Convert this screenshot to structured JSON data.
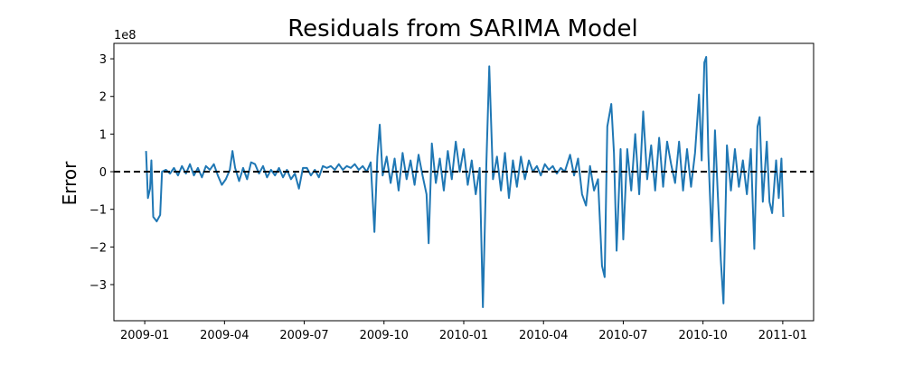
{
  "chart_data": {
    "type": "line",
    "title": "Residuals from SARIMA Model",
    "ylabel": "Error",
    "y_offset_label": "1e8",
    "color": "#1f77b4",
    "hline": 0,
    "xlim": [
      -1.16,
      25.16
    ],
    "xticks": [
      {
        "value": 0,
        "label": "2009-01"
      },
      {
        "value": 3,
        "label": "2009-04"
      },
      {
        "value": 6,
        "label": "2009-07"
      },
      {
        "value": 9,
        "label": "2009-10"
      },
      {
        "value": 12,
        "label": "2010-01"
      },
      {
        "value": 15,
        "label": "2010-04"
      },
      {
        "value": 18,
        "label": "2010-07"
      },
      {
        "value": 21,
        "label": "2010-10"
      },
      {
        "value": 24,
        "label": "2011-01"
      }
    ],
    "ylim": [
      -3.96,
      3.41
    ],
    "yticks": [
      {
        "value": -3,
        "label": "−3"
      },
      {
        "value": -2,
        "label": "−2"
      },
      {
        "value": -1,
        "label": "−1"
      },
      0,
      1,
      2,
      3
    ],
    "x": [
      0.05,
      0.12,
      0.2,
      0.25,
      0.32,
      0.45,
      0.58,
      0.65,
      0.8,
      0.95,
      1.1,
      1.25,
      1.4,
      1.55,
      1.7,
      1.85,
      2.0,
      2.15,
      2.3,
      2.45,
      2.6,
      2.75,
      2.9,
      3.05,
      3.2,
      3.3,
      3.4,
      3.55,
      3.7,
      3.85,
      4.0,
      4.15,
      4.3,
      4.45,
      4.6,
      4.75,
      4.9,
      5.05,
      5.2,
      5.35,
      5.5,
      5.65,
      5.8,
      5.95,
      6.1,
      6.25,
      6.4,
      6.55,
      6.7,
      6.85,
      7.0,
      7.15,
      7.3,
      7.45,
      7.6,
      7.75,
      7.9,
      8.05,
      8.2,
      8.35,
      8.5,
      8.64,
      8.75,
      8.84,
      8.95,
      9.1,
      9.25,
      9.4,
      9.55,
      9.7,
      9.85,
      10.0,
      10.15,
      10.3,
      10.45,
      10.6,
      10.68,
      10.8,
      10.95,
      11.1,
      11.25,
      11.4,
      11.55,
      11.7,
      11.85,
      12.0,
      12.15,
      12.3,
      12.45,
      12.6,
      12.72,
      12.85,
      12.96,
      13.1,
      13.25,
      13.4,
      13.55,
      13.7,
      13.85,
      14.0,
      14.15,
      14.3,
      14.45,
      14.6,
      14.75,
      14.9,
      15.05,
      15.2,
      15.35,
      15.5,
      15.65,
      15.8,
      16.0,
      16.15,
      16.3,
      16.45,
      16.6,
      16.75,
      16.9,
      17.05,
      17.2,
      17.3,
      17.4,
      17.55,
      17.65,
      17.75,
      17.9,
      18.0,
      18.15,
      18.3,
      18.45,
      18.6,
      18.75,
      18.9,
      19.05,
      19.2,
      19.35,
      19.5,
      19.65,
      19.8,
      19.95,
      20.1,
      20.25,
      20.4,
      20.55,
      20.7,
      20.85,
      20.95,
      21.05,
      21.12,
      21.2,
      21.33,
      21.45,
      21.55,
      21.67,
      21.77,
      21.9,
      22.05,
      22.2,
      22.35,
      22.5,
      22.65,
      22.8,
      22.93,
      23.05,
      23.13,
      23.25,
      23.4,
      23.5,
      23.6,
      23.75,
      23.85,
      23.95,
      24.02
    ],
    "values": [
      0.55,
      -0.7,
      -0.45,
      0.3,
      -1.2,
      -1.32,
      -1.15,
      0.0,
      0.05,
      -0.05,
      0.1,
      -0.1,
      0.15,
      -0.05,
      0.2,
      -0.1,
      0.1,
      -0.15,
      0.15,
      0.05,
      0.2,
      -0.1,
      -0.35,
      -0.2,
      0.05,
      0.55,
      0.1,
      -0.25,
      0.1,
      -0.2,
      0.25,
      0.2,
      -0.05,
      0.15,
      -0.15,
      0.05,
      -0.1,
      0.1,
      -0.15,
      0.05,
      -0.2,
      -0.05,
      -0.45,
      0.1,
      0.1,
      -0.1,
      0.05,
      -0.15,
      0.15,
      0.1,
      0.15,
      0.05,
      0.2,
      0.05,
      0.15,
      0.1,
      0.2,
      0.05,
      0.15,
      0.0,
      0.25,
      -1.6,
      0.4,
      1.25,
      -0.1,
      0.4,
      -0.3,
      0.35,
      -0.5,
      0.5,
      -0.2,
      0.3,
      -0.35,
      0.45,
      -0.1,
      -0.6,
      -1.9,
      0.75,
      -0.3,
      0.35,
      -0.5,
      0.55,
      -0.2,
      0.8,
      0.0,
      0.6,
      -0.35,
      0.3,
      -0.6,
      0.1,
      -3.6,
      0.2,
      2.8,
      -0.2,
      0.4,
      -0.5,
      0.5,
      -0.7,
      0.3,
      -0.4,
      0.4,
      -0.2,
      0.3,
      0.0,
      0.15,
      -0.1,
      0.2,
      0.05,
      0.15,
      -0.05,
      0.1,
      0.0,
      0.45,
      -0.1,
      0.35,
      -0.6,
      -0.9,
      0.15,
      -0.5,
      -0.2,
      -2.5,
      -2.8,
      1.2,
      1.8,
      0.5,
      -2.1,
      0.6,
      -1.8,
      0.6,
      -0.5,
      1.0,
      -0.6,
      1.6,
      -0.2,
      0.7,
      -0.5,
      0.9,
      -0.4,
      0.8,
      0.2,
      -0.3,
      0.8,
      -0.5,
      0.6,
      -0.4,
      0.5,
      2.05,
      0.3,
      2.9,
      3.05,
      0.5,
      -1.85,
      1.1,
      -0.5,
      -2.35,
      -3.5,
      0.7,
      -0.5,
      0.6,
      -0.4,
      0.3,
      -0.6,
      0.6,
      -2.05,
      1.2,
      1.45,
      -0.8,
      0.8,
      -0.8,
      -1.1,
      0.3,
      -0.7,
      0.35,
      -1.2
    ]
  }
}
